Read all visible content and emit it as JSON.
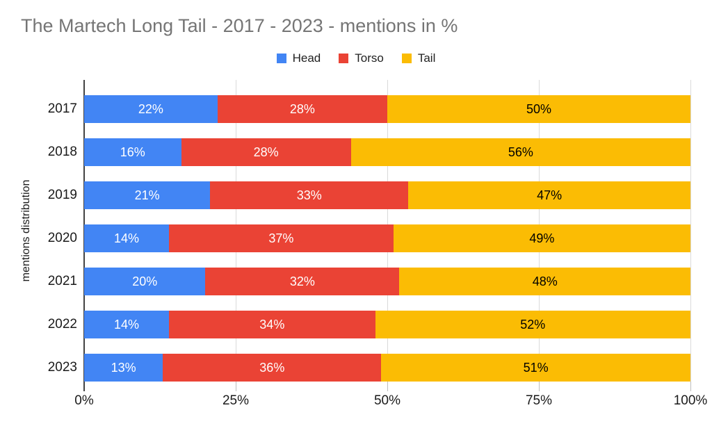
{
  "chart": {
    "title": "The Martech Long Tail - 2017 - 2023 - mentions in %",
    "y_axis_title": "mentions distribution",
    "colors": {
      "head": "#4285F4",
      "torso": "#EA4335",
      "tail": "#FBBC04",
      "title_text": "#757575",
      "gridline": "#DADADA",
      "axis": "#424242"
    }
  },
  "chart_data": {
    "type": "bar",
    "orientation": "horizontal",
    "stacked": true,
    "title": "The Martech Long Tail - 2017 - 2023 - mentions in %",
    "xlabel": "",
    "ylabel": "mentions distribution",
    "xlim": [
      0,
      100
    ],
    "grid": true,
    "legend_position": "top-center",
    "categories": [
      "2017",
      "2018",
      "2019",
      "2020",
      "2021",
      "2022",
      "2023"
    ],
    "series": [
      {
        "name": "Head",
        "color": "#4285F4",
        "label_color": "#ffffff",
        "values": [
          22,
          16,
          21,
          14,
          20,
          14,
          13
        ]
      },
      {
        "name": "Torso",
        "color": "#EA4335",
        "label_color": "#ffffff",
        "values": [
          28,
          28,
          33,
          37,
          32,
          34,
          36
        ]
      },
      {
        "name": "Tail",
        "color": "#FBBC04",
        "label_color": "#000000",
        "values": [
          50,
          56,
          47,
          49,
          48,
          52,
          51
        ]
      }
    ],
    "data_label_format": "{value}%",
    "x_ticks": [
      {
        "label": "0%",
        "value": 0
      },
      {
        "label": "25%",
        "value": 25
      },
      {
        "label": "50%",
        "value": 50
      },
      {
        "label": "75%",
        "value": 75
      },
      {
        "label": "100%",
        "value": 100
      }
    ]
  }
}
